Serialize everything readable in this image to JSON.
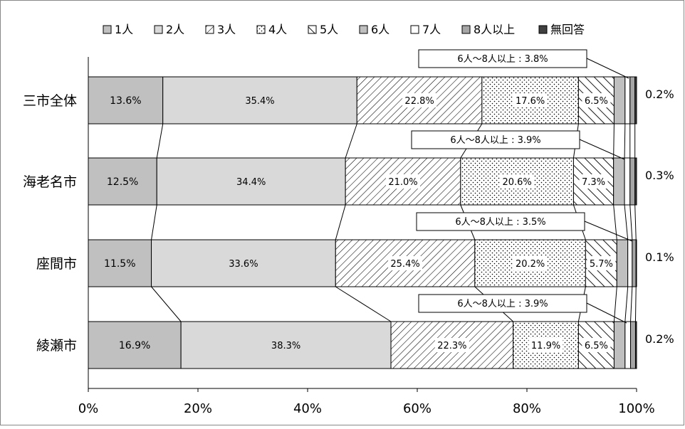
{
  "chart_data": {
    "type": "bar",
    "orientation": "horizontal",
    "stacked": "percent",
    "title": "",
    "xlim": [
      0,
      100
    ],
    "x_ticks": [
      "0%",
      "20%",
      "40%",
      "60%",
      "80%",
      "100%"
    ],
    "grid": false,
    "legend_position": "top",
    "categories": [
      "三市全体",
      "海老名市",
      "座間市",
      "綾瀬市"
    ],
    "series": [
      {
        "name": "1人",
        "values": [
          13.6,
          12.5,
          11.5,
          16.9
        ],
        "fill": "#c0c0c0",
        "pattern": "solid"
      },
      {
        "name": "2人",
        "values": [
          35.4,
          34.4,
          33.6,
          38.3
        ],
        "fill": "#d9d9d9",
        "pattern": "solid"
      },
      {
        "name": "3人",
        "values": [
          22.8,
          21.0,
          25.4,
          22.3
        ],
        "fill": "#ffffff",
        "pattern": "diagonal"
      },
      {
        "name": "4人",
        "values": [
          17.6,
          20.6,
          20.2,
          11.9
        ],
        "fill": "#ffffff",
        "pattern": "dots"
      },
      {
        "name": "5人",
        "values": [
          6.5,
          7.3,
          5.7,
          6.5
        ],
        "fill": "#ffffff",
        "pattern": "wide-diagonal"
      },
      {
        "name": "6人",
        "values": [
          2.0,
          2.0,
          2.0,
          2.0
        ],
        "fill": "#bfbfbf",
        "pattern": "solid"
      },
      {
        "name": "7人",
        "values": [
          0.9,
          1.0,
          0.8,
          1.0
        ],
        "fill": "#ffffff",
        "pattern": "solid"
      },
      {
        "name": "8人以上",
        "values": [
          0.9,
          0.9,
          0.7,
          0.9
        ],
        "fill": "#a6a6a6",
        "pattern": "solid"
      },
      {
        "name": "無回答",
        "values": [
          0.2,
          0.3,
          0.1,
          0.2
        ],
        "fill": "#404040",
        "pattern": "solid"
      }
    ],
    "data_labels": [
      [
        "13.6%",
        "35.4%",
        "22.8%",
        "17.6%",
        "6.5%"
      ],
      [
        "12.5%",
        "34.4%",
        "21.0%",
        "20.6%",
        "7.3%"
      ],
      [
        "11.5%",
        "33.6%",
        "25.4%",
        "20.2%",
        "5.7%"
      ],
      [
        "16.9%",
        "38.3%",
        "22.3%",
        "11.9%",
        "6.5%"
      ]
    ],
    "no_answer_labels": [
      "0.2%",
      "0.3%",
      "0.1%",
      "0.2%"
    ],
    "callouts": [
      "6人～8人以上 : 3.8%",
      "6人～8人以上 : 3.9%",
      "6人～8人以上 : 3.5%",
      "6人～8人以上 : 3.9%"
    ]
  }
}
